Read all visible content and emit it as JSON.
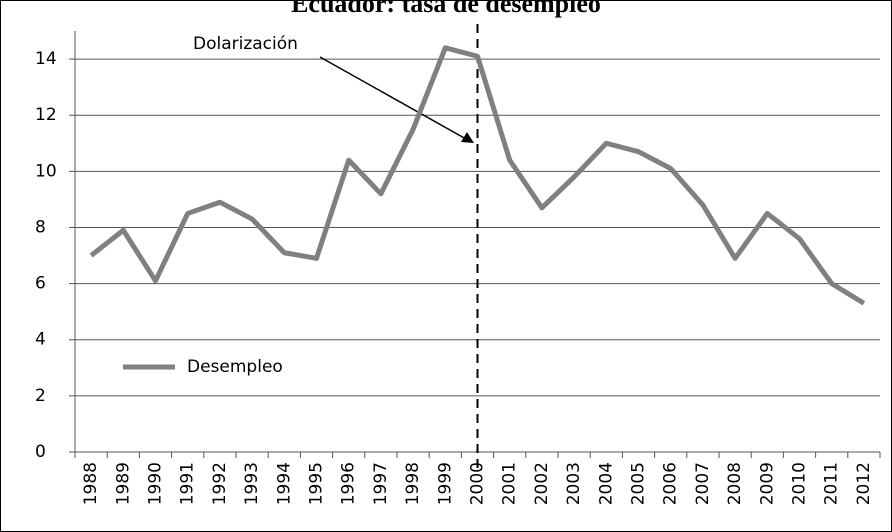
{
  "chart_data": {
    "type": "line",
    "title": "Ecuador: tasa de desempleo",
    "categories": [
      "1988",
      "1989",
      "1990",
      "1991",
      "1992",
      "1993",
      "1994",
      "1995",
      "1996",
      "1997",
      "1998",
      "1999",
      "2000",
      "2001",
      "2002",
      "2003",
      "2004",
      "2005",
      "2006",
      "2007",
      "2008",
      "2009",
      "2010",
      "2011",
      "2012"
    ],
    "series": [
      {
        "name": "Desempleo",
        "color": "#808080",
        "values": [
          7.0,
          7.9,
          6.1,
          8.5,
          8.9,
          8.3,
          7.1,
          6.9,
          10.4,
          9.2,
          11.5,
          14.4,
          14.1,
          10.4,
          8.7,
          9.8,
          11.0,
          10.7,
          10.1,
          8.8,
          6.9,
          8.5,
          7.6,
          6.0,
          5.3
        ]
      }
    ],
    "ylim": [
      0,
      15
    ],
    "yticks": [
      0,
      2,
      4,
      6,
      8,
      10,
      12,
      14
    ],
    "grid": true,
    "legend": "left",
    "annotation": {
      "text": "Dolarización",
      "x": "2000"
    }
  }
}
